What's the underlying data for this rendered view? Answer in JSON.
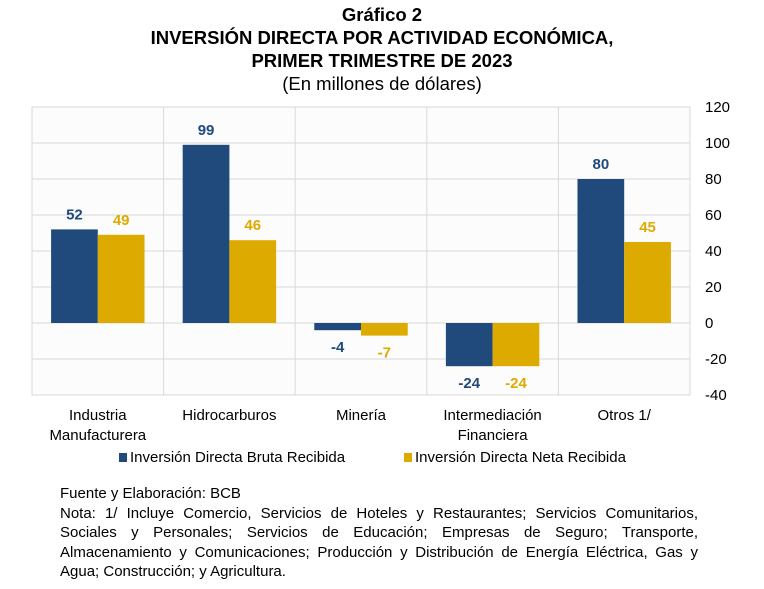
{
  "header": {
    "figure_number": "Gráfico 2",
    "title_line1": "INVERSIÓN DIRECTA POR ACTIVIDAD ECONÓMICA,",
    "title_line2": "PRIMER TRIMESTRE DE 2023",
    "subtitle": "(En millones de dólares)"
  },
  "chart_data": {
    "type": "bar",
    "title": "INVERSIÓN DIRECTA POR ACTIVIDAD ECONÓMICA, PRIMER TRIMESTRE DE 2023",
    "subtitle": "(En millones de dólares)",
    "xlabel": "",
    "ylabel": "",
    "categories": [
      [
        "Industria",
        "Manufacturera"
      ],
      [
        "Hidrocarburos"
      ],
      [
        "Minería"
      ],
      [
        "Intermediación",
        "Financiera"
      ],
      [
        "Otros 1/"
      ]
    ],
    "series": [
      {
        "name": "Inversión Directa Bruta Recibida",
        "color": "#204A7C",
        "values": [
          52,
          99,
          -4,
          -24,
          80
        ]
      },
      {
        "name": "Inversión Directa Neta Recibida",
        "color": "#DDAA00",
        "values": [
          49,
          46,
          -7,
          -24,
          45
        ]
      }
    ],
    "ylim": [
      -40,
      120
    ],
    "yticks": [
      120,
      100,
      80,
      60,
      40,
      20,
      0,
      -20,
      -40
    ],
    "y_axis_side": "right",
    "grid": true,
    "data_labels": true,
    "legend_position": "bottom"
  },
  "legend": {
    "items": [
      {
        "label": "Inversión Directa Bruta Recibida",
        "color": "#204A7C"
      },
      {
        "label": "Inversión Directa Neta Recibida",
        "color": "#DDAA00"
      }
    ]
  },
  "notes": {
    "source": "Fuente y Elaboración: BCB",
    "note": "Nota: 1/ Incluye Comercio, Servicios de Hoteles y Restaurantes; Servicios Comunitarios, Sociales y Personales; Servicios de Educación; Empresas de Seguro; Transporte, Almacenamiento y Comunicaciones; Producción y Distribución de Energía Eléctrica, Gas y Agua; Construcción; y Agricultura."
  }
}
